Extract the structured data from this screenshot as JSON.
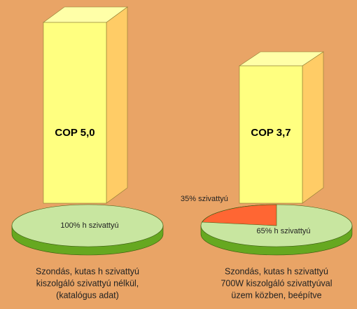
{
  "left": {
    "label": "COP 5,0",
    "pie_label": "100% h  szivattyú",
    "caption": [
      "Szondás, kutas h  szivattyú",
      "kiszolgáló szivattyú nélkül,",
      "(katalógus adat)"
    ]
  },
  "right": {
    "label": "COP 3,7",
    "pie_labels": [
      "35% szivattyú",
      "65% h  szivattyú"
    ],
    "caption": [
      "Szondás, kutas h  szivattyú",
      "700W kiszolgáló szivattyúval",
      "üzem közben, beépítve"
    ]
  }
}
